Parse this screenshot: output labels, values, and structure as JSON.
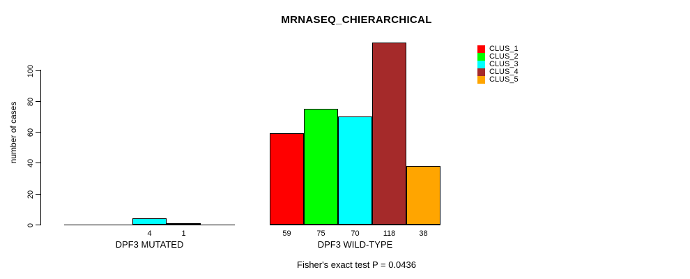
{
  "chart_data": {
    "type": "bar",
    "title": "MRNASEQ_CHIERARCHICAL",
    "ylabel": "number of cases",
    "yticks": [
      0,
      20,
      40,
      60,
      80,
      100
    ],
    "ylim": [
      0,
      118
    ],
    "grid": false,
    "legend_position": "right-outside-top",
    "series_names": [
      "CLUS_1",
      "CLUS_2",
      "CLUS_3",
      "CLUS_4",
      "CLUS_5"
    ],
    "series_colors": [
      "#ff0000",
      "#00ff00",
      "#00ffff",
      "#a52a2a",
      "#ffa500"
    ],
    "categories": [
      "DPF3 MUTATED",
      "DPF3 WILD-TYPE"
    ],
    "groups": [
      {
        "label": "DPF3 MUTATED",
        "values": [
          0,
          0,
          4,
          1,
          0
        ]
      },
      {
        "label": "DPF3 WILD-TYPE",
        "values": [
          59,
          75,
          70,
          118,
          38
        ]
      }
    ],
    "bar_value_labels_shown": [
      "4",
      "1",
      "59",
      "75",
      "70",
      "118",
      "38"
    ],
    "footnote": "Fisher's exact test P = 0.0436"
  }
}
